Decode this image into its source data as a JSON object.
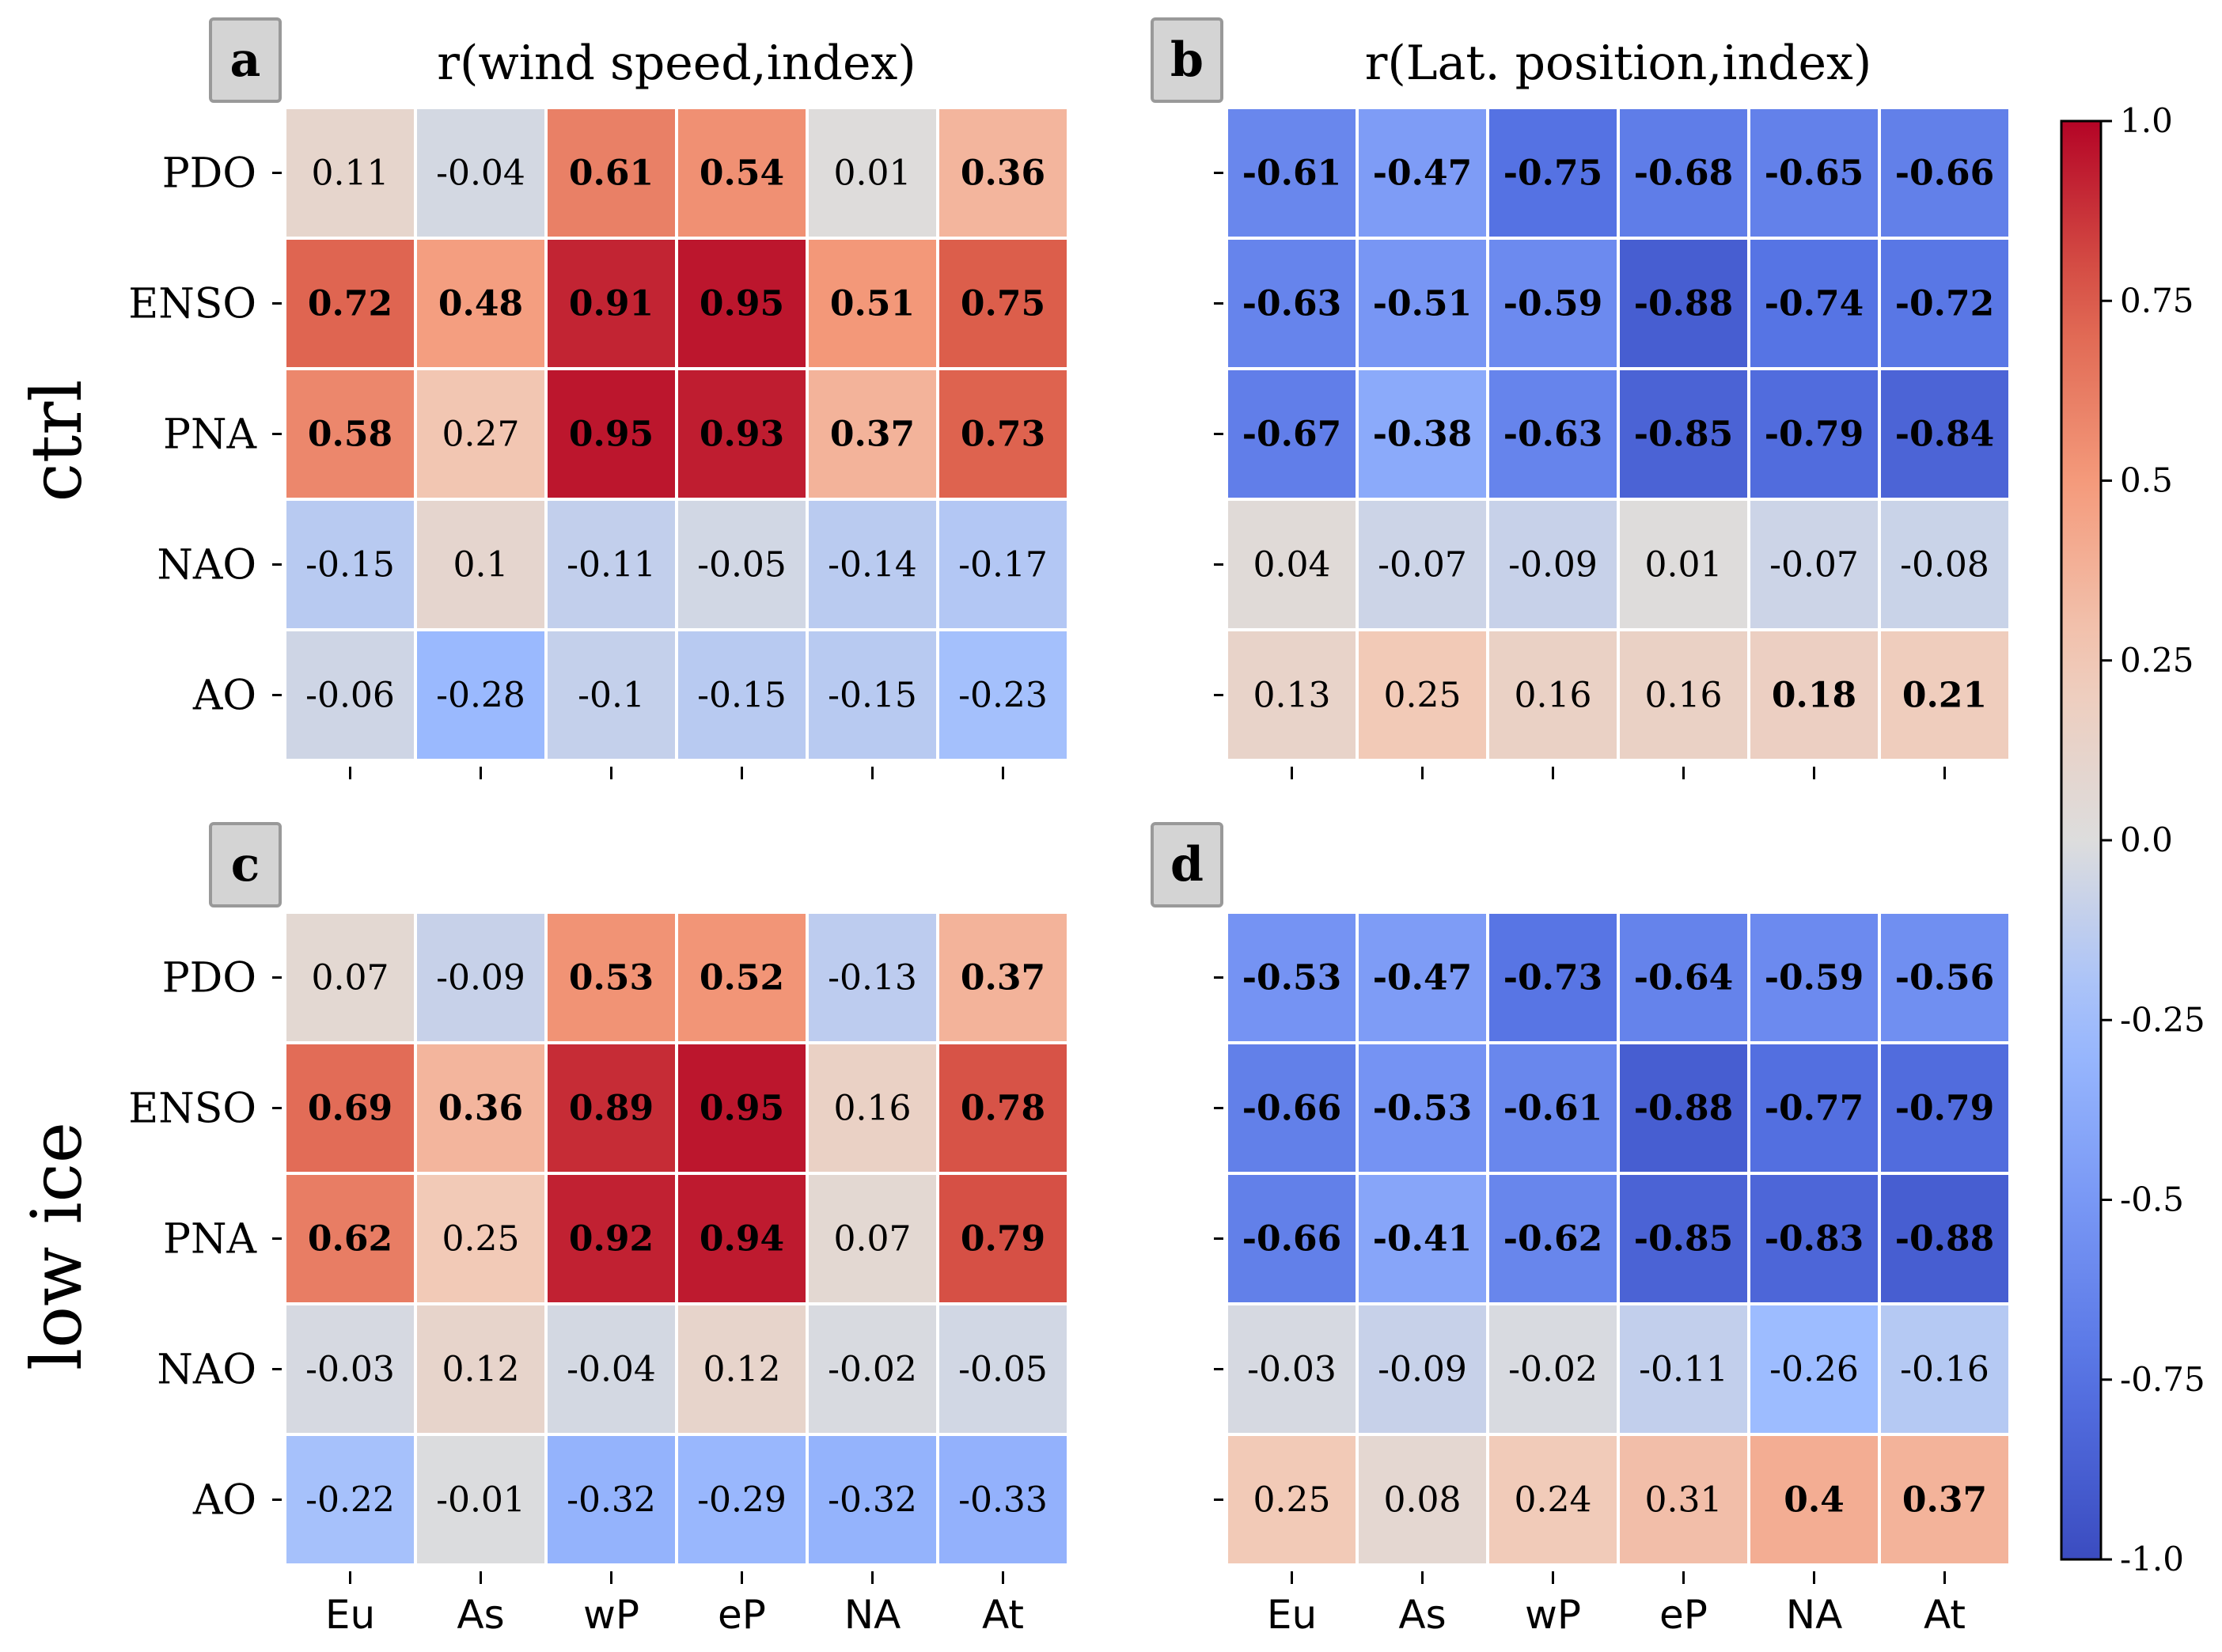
{
  "chart_data": {
    "type": "heatmap",
    "colormap": "coolwarm",
    "vmin": -1.0,
    "vmax": 1.0,
    "rows": [
      "PDO",
      "ENSO",
      "PNA",
      "NAO",
      "AO"
    ],
    "columns": [
      "Eu",
      "As",
      "wP",
      "eP",
      "NA",
      "At"
    ],
    "row_group_labels": [
      "ctrl",
      "low ice"
    ],
    "column_titles": [
      "r(wind speed,index)",
      "r(Lat. position,index)"
    ],
    "colorbar": {
      "ticks": [
        1.0,
        0.75,
        0.5,
        0.25,
        0.0,
        -0.25,
        -0.5,
        -0.75,
        -1.0
      ],
      "tick_labels": [
        "1.0",
        "0.75",
        "0.5",
        "0.25",
        "0.0",
        "-0.25",
        "-0.5",
        "-0.75",
        "-1.0"
      ]
    },
    "panels": [
      {
        "letter": "a",
        "values": [
          [
            "0.11",
            "-0.04",
            "0.61",
            "0.54",
            "0.01",
            "0.36"
          ],
          [
            "0.72",
            "0.48",
            "0.91",
            "0.95",
            "0.51",
            "0.75"
          ],
          [
            "0.58",
            "0.27",
            "0.95",
            "0.93",
            "0.37",
            "0.73"
          ],
          [
            "-0.15",
            "0.1",
            "-0.11",
            "-0.05",
            "-0.14",
            "-0.17"
          ],
          [
            "-0.06",
            "-0.28",
            "-0.1",
            "-0.15",
            "-0.15",
            "-0.23"
          ]
        ],
        "bold": [
          [
            0,
            0,
            1,
            1,
            0,
            1
          ],
          [
            1,
            1,
            1,
            1,
            1,
            1
          ],
          [
            1,
            0,
            1,
            1,
            1,
            1
          ],
          [
            0,
            0,
            0,
            0,
            0,
            0
          ],
          [
            0,
            0,
            0,
            0,
            0,
            0
          ]
        ]
      },
      {
        "letter": "b",
        "values": [
          [
            "-0.61",
            "-0.47",
            "-0.75",
            "-0.68",
            "-0.65",
            "-0.66"
          ],
          [
            "-0.63",
            "-0.51",
            "-0.59",
            "-0.88",
            "-0.74",
            "-0.72"
          ],
          [
            "-0.67",
            "-0.38",
            "-0.63",
            "-0.85",
            "-0.79",
            "-0.84"
          ],
          [
            "0.04",
            "-0.07",
            "-0.09",
            "0.01",
            "-0.07",
            "-0.08"
          ],
          [
            "0.13",
            "0.25",
            "0.16",
            "0.16",
            "0.18",
            "0.21"
          ]
        ],
        "bold": [
          [
            1,
            1,
            1,
            1,
            1,
            1
          ],
          [
            1,
            1,
            1,
            1,
            1,
            1
          ],
          [
            1,
            1,
            1,
            1,
            1,
            1
          ],
          [
            0,
            0,
            0,
            0,
            0,
            0
          ],
          [
            0,
            0,
            0,
            0,
            1,
            1
          ]
        ]
      },
      {
        "letter": "c",
        "values": [
          [
            "0.07",
            "-0.09",
            "0.53",
            "0.52",
            "-0.13",
            "0.37"
          ],
          [
            "0.69",
            "0.36",
            "0.89",
            "0.95",
            "0.16",
            "0.78"
          ],
          [
            "0.62",
            "0.25",
            "0.92",
            "0.94",
            "0.07",
            "0.79"
          ],
          [
            "-0.03",
            "0.12",
            "-0.04",
            "0.12",
            "-0.02",
            "-0.05"
          ],
          [
            "-0.22",
            "-0.01",
            "-0.32",
            "-0.29",
            "-0.32",
            "-0.33"
          ]
        ],
        "bold": [
          [
            0,
            0,
            1,
            1,
            0,
            1
          ],
          [
            1,
            1,
            1,
            1,
            0,
            1
          ],
          [
            1,
            0,
            1,
            1,
            0,
            1
          ],
          [
            0,
            0,
            0,
            0,
            0,
            0
          ],
          [
            0,
            0,
            0,
            0,
            0,
            0
          ]
        ]
      },
      {
        "letter": "d",
        "values": [
          [
            "-0.53",
            "-0.47",
            "-0.73",
            "-0.64",
            "-0.59",
            "-0.56"
          ],
          [
            "-0.66",
            "-0.53",
            "-0.61",
            "-0.88",
            "-0.77",
            "-0.79"
          ],
          [
            "-0.66",
            "-0.41",
            "-0.62",
            "-0.85",
            "-0.83",
            "-0.88"
          ],
          [
            "-0.03",
            "-0.09",
            "-0.02",
            "-0.11",
            "-0.26",
            "-0.16"
          ],
          [
            "0.25",
            "0.08",
            "0.24",
            "0.31",
            "0.4",
            "0.37"
          ]
        ],
        "bold": [
          [
            1,
            1,
            1,
            1,
            1,
            1
          ],
          [
            1,
            1,
            1,
            1,
            1,
            1
          ],
          [
            1,
            1,
            1,
            1,
            1,
            1
          ],
          [
            0,
            0,
            0,
            0,
            0,
            0
          ],
          [
            0,
            0,
            0,
            0,
            1,
            1
          ]
        ]
      }
    ]
  }
}
